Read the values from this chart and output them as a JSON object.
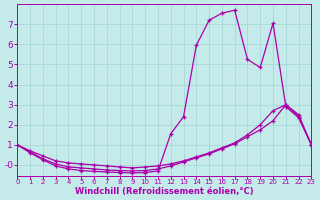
{
  "bg_color": "#c5eaea",
  "grid_color": "#a8d8d8",
  "line_color": "#aa00aa",
  "xlabel": "Windchill (Refroidissement éolien,°C)",
  "xlim": [
    0,
    23
  ],
  "ylim": [
    -0.55,
    8.0
  ],
  "xticks": [
    0,
    1,
    2,
    3,
    4,
    5,
    6,
    7,
    8,
    9,
    10,
    11,
    12,
    13,
    14,
    15,
    16,
    17,
    18,
    19,
    20,
    21,
    22,
    23
  ],
  "yticks": [
    0,
    1,
    2,
    3,
    4,
    5,
    6,
    7
  ],
  "ytick_labels": [
    "-0",
    "1",
    "2",
    "3",
    "4",
    "5",
    "6",
    "7"
  ],
  "lines": [
    [
      1.0,
      0.7,
      0.45,
      0.2,
      0.1,
      0.05,
      0.0,
      -0.05,
      -0.1,
      -0.15,
      -0.1,
      -0.05,
      0.05,
      0.2,
      0.4,
      0.6,
      0.85,
      1.1,
      1.5,
      2.0,
      2.7,
      3.0,
      2.4,
      1.0
    ],
    [
      1.0,
      0.65,
      0.3,
      0.05,
      -0.1,
      -0.15,
      -0.2,
      -0.25,
      -0.28,
      -0.3,
      -0.28,
      -0.2,
      -0.05,
      0.15,
      0.35,
      0.55,
      0.8,
      1.05,
      1.4,
      1.75,
      2.2,
      3.0,
      2.5,
      1.0
    ],
    [
      1.0,
      0.6,
      0.25,
      -0.05,
      -0.2,
      -0.28,
      -0.32,
      -0.35,
      -0.38,
      -0.4,
      -0.38,
      -0.3,
      1.55,
      2.4,
      5.95,
      7.2,
      7.55,
      7.7,
      5.25,
      4.85,
      7.05,
      2.9,
      2.35,
      1.0
    ]
  ]
}
